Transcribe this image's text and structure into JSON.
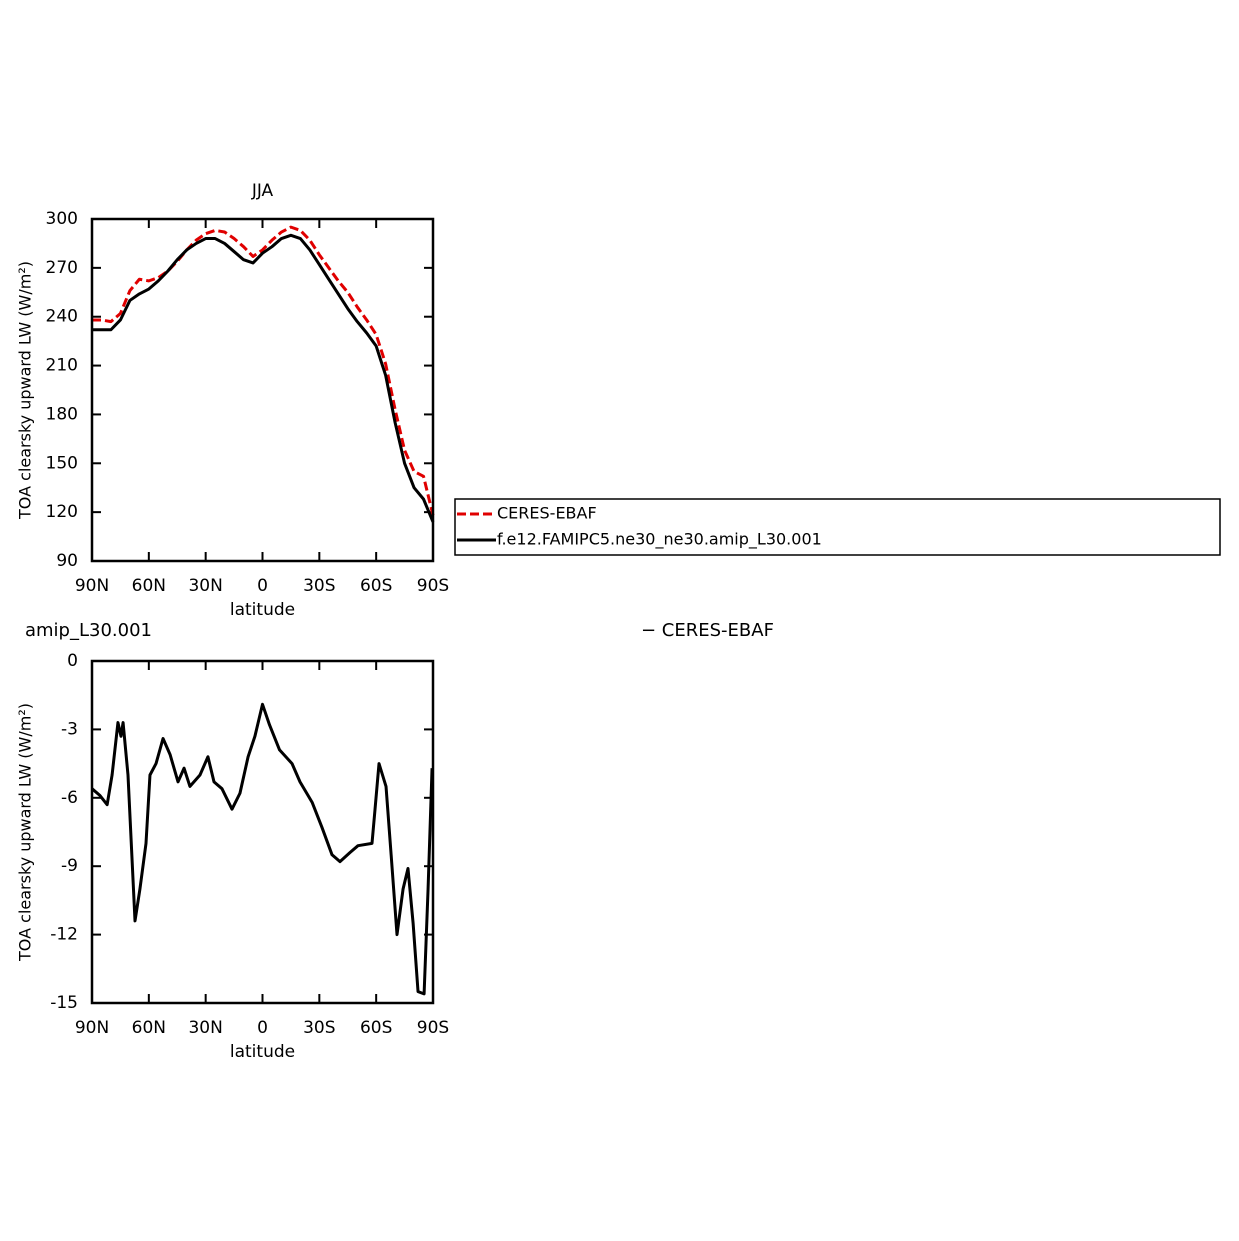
{
  "chart_data": [
    {
      "type": "line",
      "title": "JJA",
      "x_label": "latitude",
      "y_label": "TOA clearsky upward LW (W/m²)",
      "x": [
        90,
        85,
        80,
        75,
        70,
        65,
        60,
        55,
        50,
        45,
        40,
        35,
        30,
        25,
        20,
        15,
        10,
        5,
        0,
        -5,
        -10,
        -15,
        -20,
        -25,
        -30,
        -35,
        -40,
        -45,
        -50,
        -55,
        -60,
        -65,
        -70,
        -75,
        -80,
        -85,
        -90
      ],
      "series": [
        {
          "name": "CERES-EBAF",
          "color": "#e00000",
          "dashed": true,
          "values": [
            238,
            238,
            237,
            242,
            256,
            263,
            262,
            264,
            268,
            274,
            281,
            287,
            291,
            293,
            292,
            288,
            283,
            277,
            281,
            287,
            292,
            295,
            293,
            287,
            278,
            270,
            262,
            255,
            246,
            238,
            229,
            211,
            183,
            158,
            145,
            142,
            118
          ]
        },
        {
          "name": "f.e12.FAMIPC5.ne30_ne30.amip_L30.001",
          "color": "#000000",
          "dashed": false,
          "values": [
            232,
            232,
            232,
            238,
            250,
            254,
            257,
            262,
            268,
            275,
            281,
            285,
            288,
            288,
            285,
            280,
            275,
            273,
            279,
            283,
            288,
            290,
            288,
            281,
            272,
            263,
            254,
            245,
            237,
            230,
            222,
            204,
            175,
            150,
            135,
            128,
            114
          ]
        }
      ],
      "xlim": [
        90,
        -90
      ],
      "xticks": [
        {
          "value": 90,
          "label": "90N"
        },
        {
          "value": 60,
          "label": "60N"
        },
        {
          "value": 30,
          "label": "30N"
        },
        0,
        {
          "value": -30,
          "label": "30S"
        },
        {
          "value": -60,
          "label": "60S"
        },
        {
          "value": -90,
          "label": "90S"
        }
      ],
      "ylim": [
        90,
        300
      ],
      "yticks": [
        90,
        120,
        150,
        180,
        210,
        240,
        270,
        300
      ],
      "legend": "outside-right"
    },
    {
      "type": "line",
      "annotations": [
        "amip_L30.001",
        "− CERES-EBAF"
      ],
      "x_label": "latitude",
      "y_label": "TOA clearsky upward LW (W/m²)",
      "x": [
        90,
        85.8,
        82,
        79.4,
        76.3,
        74.7,
        73.6,
        71,
        67.3,
        64.7,
        61.5,
        59.4,
        56.2,
        52.5,
        48.8,
        44.6,
        41.4,
        38.3,
        33,
        28.8,
        25.6,
        21.4,
        16.1,
        11.9,
        7.6,
        4,
        0,
        -3.7,
        -9,
        -15.6,
        -19.8,
        -26.2,
        -31.4,
        -36.7,
        -40.9,
        -46.2,
        -50.4,
        -57.8,
        -59.4,
        -61.5,
        -65.2,
        -67.9,
        -71,
        -74.2,
        -76.8,
        -79.5,
        -82.1,
        -85.3,
        -87.4,
        -89.5
      ],
      "series": [
        {
          "color": "#000000",
          "dashed": false,
          "values": [
            -5.6,
            -5.9,
            -6.3,
            -5.0,
            -2.7,
            -3.3,
            -2.7,
            -5.0,
            -11.4,
            -10.0,
            -8.0,
            -5.0,
            -4.5,
            -3.4,
            -4.1,
            -5.3,
            -4.7,
            -5.5,
            -5.0,
            -4.2,
            -5.3,
            -5.6,
            -6.5,
            -5.8,
            -4.2,
            -3.3,
            -1.9,
            -2.8,
            -3.9,
            -4.5,
            -5.3,
            -6.2,
            -7.3,
            -8.5,
            -8.8,
            -8.4,
            -8.1,
            -8.0,
            -6.5,
            -4.5,
            -5.5,
            -8.5,
            -12.0,
            -10.0,
            -9.1,
            -11.5,
            -14.5,
            -14.6,
            -10.0,
            -4.7
          ]
        }
      ],
      "xlim": [
        90,
        -90
      ],
      "xticks": [
        {
          "value": 90,
          "label": "90N"
        },
        {
          "value": 60,
          "label": "60N"
        },
        {
          "value": 30,
          "label": "30N"
        },
        0,
        {
          "value": -30,
          "label": "30S"
        },
        {
          "value": -60,
          "label": "60S"
        },
        {
          "value": -90,
          "label": "90S"
        }
      ],
      "ylim": [
        -15,
        0
      ],
      "yticks": [
        -15,
        -12,
        -9,
        -6,
        -3,
        0
      ]
    }
  ]
}
